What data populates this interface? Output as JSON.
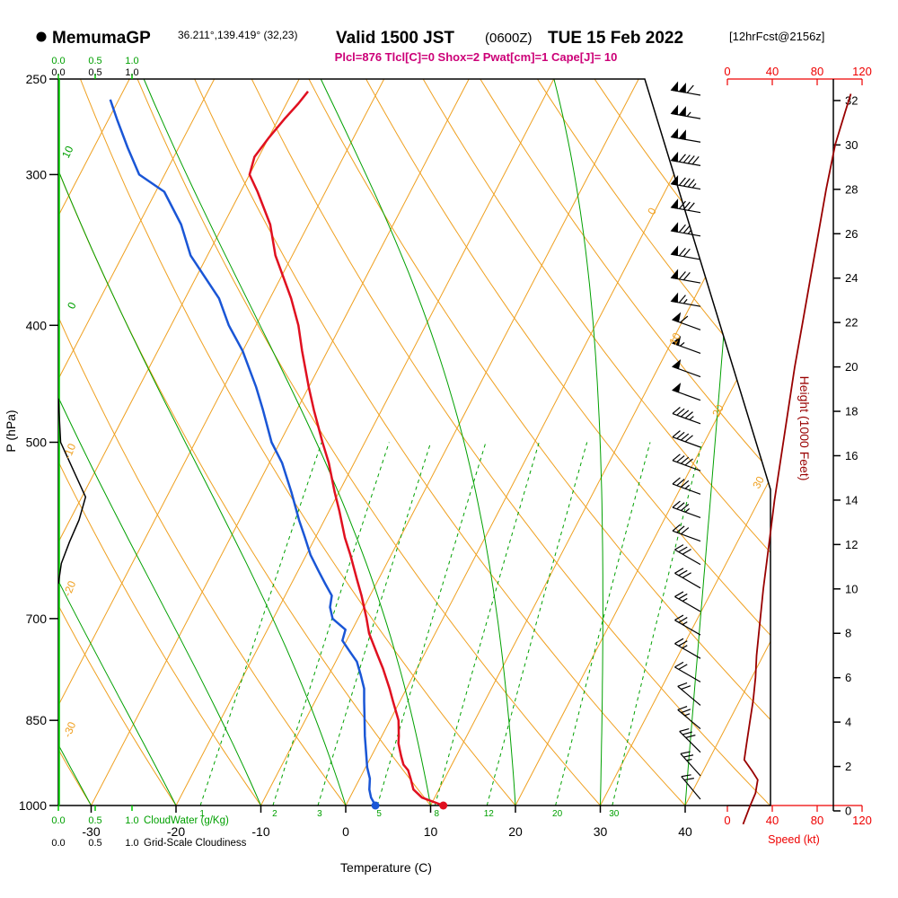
{
  "header": {
    "station": "MemumaGP",
    "coords": "36.211°,139.419° (32,23)",
    "valid": "Valid 1500 JST",
    "valid_z": "(0600Z)",
    "valid_date": "TUE 15 Feb 2022",
    "fcst_tag": "[12hrFcst@2156z]",
    "params_line": "Plcl=876 Tlcl[C]=0 Shox=2 Pwat[cm]=1 Cape[J]= 10"
  },
  "axis_labels": {
    "pressure": "P (hPa)",
    "temperature": "Temperature (C)",
    "height": "Height (1000 Feet)",
    "speed": "Speed (kt)",
    "cloudwater": "CloudWater (g/Kg)",
    "cloudiness": "Grid-Scale Cloudiness"
  },
  "colors": {
    "grid_orange": "#efa020",
    "grid_green": "#00a000",
    "axis_green": "#00cc00",
    "magenta": "#cc0077",
    "speed_red": "#ee0000",
    "height_maroon": "#990000",
    "temperature_red": "#e01020",
    "dewpoint_blue": "#1a56d6"
  },
  "chart_data": {
    "type": "line",
    "title": "MemumaGP Valid 1500 JST (0600Z) TUE 15 Feb 2022 skew-T log-P sounding",
    "xlabel": "Temperature (C)",
    "ylabel": "P (hPa)",
    "pressure_ticks": [
      250,
      300,
      400,
      500,
      700,
      850,
      1000
    ],
    "temp_ticks": [
      -30,
      -20,
      -10,
      0,
      10,
      20,
      30,
      40
    ],
    "height_ticks": [
      0,
      2,
      4,
      6,
      8,
      10,
      12,
      14,
      16,
      18,
      20,
      22,
      24,
      26,
      28,
      30,
      32
    ],
    "speed_ticks": [
      0,
      40,
      80,
      120
    ],
    "cloud_scale_ticks": [
      "0.0",
      "0.5",
      "1.0"
    ],
    "pressure_range": [
      250,
      1000
    ],
    "isotherm_right_labels": [
      "0",
      "10",
      "20",
      "30"
    ],
    "dry_adiabat_left_labels": [
      "-10",
      "-20",
      "-30"
    ],
    "moist_adiabat_left_labels": [
      "10",
      "0"
    ],
    "mixing_ratio_lines": [
      1,
      2,
      3,
      5,
      8,
      12,
      20,
      30
    ],
    "background": {
      "isotherms": {
        "min": -120,
        "max": 40,
        "step": 10
      },
      "dry_adiabats": {
        "min": -40,
        "max": 150,
        "step": 10
      },
      "moist_adiabats": [
        -30,
        -20,
        -10,
        0,
        10,
        20,
        30,
        40
      ],
      "mixing_ratio_top_p": 500
    },
    "series": [
      {
        "name": "temperature",
        "color": "#e01020",
        "units": [
          "hPa",
          "C"
        ],
        "points": [
          [
            1000,
            11.5
          ],
          [
            985,
            8.5
          ],
          [
            970,
            7
          ],
          [
            950,
            6
          ],
          [
            935,
            5.2
          ],
          [
            925,
            4.3
          ],
          [
            910,
            3.5
          ],
          [
            900,
            3
          ],
          [
            888,
            2.4
          ],
          [
            876,
            2
          ],
          [
            850,
            1
          ],
          [
            820,
            -0.8
          ],
          [
            800,
            -2
          ],
          [
            770,
            -4
          ],
          [
            750,
            -5.5
          ],
          [
            720,
            -7.8
          ],
          [
            700,
            -9
          ],
          [
            670,
            -11
          ],
          [
            650,
            -12.5
          ],
          [
            620,
            -14.8
          ],
          [
            600,
            -16.5
          ],
          [
            570,
            -18.8
          ],
          [
            550,
            -20.5
          ],
          [
            520,
            -23
          ],
          [
            500,
            -25
          ],
          [
            470,
            -28
          ],
          [
            450,
            -30
          ],
          [
            420,
            -33
          ],
          [
            400,
            -35
          ],
          [
            380,
            -37.5
          ],
          [
            350,
            -42
          ],
          [
            330,
            -44.5
          ],
          [
            310,
            -48
          ],
          [
            300,
            -50
          ],
          [
            290,
            -50.5
          ],
          [
            280,
            -50
          ],
          [
            270,
            -49.3
          ],
          [
            262,
            -48.6
          ],
          [
            256,
            -48.2
          ]
        ]
      },
      {
        "name": "dewpoint",
        "color": "#1a56d6",
        "units": [
          "hPa",
          "C"
        ],
        "points": [
          [
            1000,
            3.5
          ],
          [
            985,
            2.5
          ],
          [
            970,
            1.8
          ],
          [
            950,
            1.2
          ],
          [
            930,
            0.2
          ],
          [
            900,
            -1
          ],
          [
            876,
            -2
          ],
          [
            850,
            -3
          ],
          [
            820,
            -4.2
          ],
          [
            800,
            -5
          ],
          [
            780,
            -6.2
          ],
          [
            760,
            -7.5
          ],
          [
            745,
            -9
          ],
          [
            730,
            -10.5
          ],
          [
            715,
            -10.8
          ],
          [
            700,
            -13
          ],
          [
            685,
            -14
          ],
          [
            670,
            -14.5
          ],
          [
            655,
            -16
          ],
          [
            640,
            -17.5
          ],
          [
            620,
            -19.5
          ],
          [
            600,
            -21.2
          ],
          [
            580,
            -23
          ],
          [
            550,
            -25.6
          ],
          [
            520,
            -28.5
          ],
          [
            500,
            -31
          ],
          [
            470,
            -34
          ],
          [
            450,
            -36.2
          ],
          [
            420,
            -40
          ],
          [
            400,
            -43.2
          ],
          [
            380,
            -46
          ],
          [
            350,
            -52
          ],
          [
            330,
            -55
          ],
          [
            310,
            -59
          ],
          [
            300,
            -63
          ],
          [
            285,
            -66
          ],
          [
            270,
            -69
          ],
          [
            260,
            -71
          ]
        ]
      },
      {
        "name": "wind_speed_profile",
        "color": "#990000",
        "units": [
          "kft",
          "kt"
        ],
        "points": [
          [
            -0.6,
            14
          ],
          [
            0.2,
            20
          ],
          [
            0.8,
            25
          ],
          [
            1.4,
            27
          ],
          [
            1.8,
            22
          ],
          [
            2.3,
            15
          ],
          [
            3,
            17
          ],
          [
            4,
            20
          ],
          [
            5,
            23
          ],
          [
            6,
            25
          ],
          [
            7,
            26
          ],
          [
            8,
            28
          ],
          [
            10,
            32
          ],
          [
            12,
            37
          ],
          [
            14,
            42
          ],
          [
            16,
            48
          ],
          [
            18,
            54
          ],
          [
            20,
            60
          ],
          [
            22,
            67
          ],
          [
            24,
            74
          ],
          [
            26,
            81
          ],
          [
            28,
            88
          ],
          [
            30,
            96
          ],
          [
            31.5,
            105
          ],
          [
            32.3,
            110
          ]
        ]
      },
      {
        "name": "grid_scale_cloudiness",
        "color": "#000000",
        "units": [
          "hPa",
          "fraction"
        ],
        "points": [
          [
            460,
            0
          ],
          [
            500,
            0.03
          ],
          [
            530,
            0.22
          ],
          [
            555,
            0.37
          ],
          [
            580,
            0.28
          ],
          [
            605,
            0.15
          ],
          [
            630,
            0.04
          ],
          [
            655,
            0
          ]
        ]
      },
      {
        "name": "cloud_water",
        "color": "#00cc00",
        "units": [
          "hPa",
          "g/kg"
        ],
        "points": [
          [
            1000,
            0
          ],
          [
            250,
            0
          ]
        ]
      }
    ],
    "surface_markers": [
      {
        "name": "surface-temperature-dot",
        "color": "#e01020",
        "p": 1000,
        "value": 11.5
      },
      {
        "name": "surface-dewpoint-dot",
        "color": "#1a56d6",
        "p": 1000,
        "value": 3.5
      }
    ],
    "wind_barbs": {
      "order": "top(250hPa) to bottom(1000hPa), evenly spaced",
      "levels": [
        {
          "spd": 108,
          "dir": 280
        },
        {
          "spd": 104,
          "dir": 280
        },
        {
          "spd": 98,
          "dir": 280
        },
        {
          "spd": 92,
          "dir": 280
        },
        {
          "spd": 86,
          "dir": 280
        },
        {
          "spd": 80,
          "dir": 280
        },
        {
          "spd": 76,
          "dir": 280
        },
        {
          "spd": 72,
          "dir": 280
        },
        {
          "spd": 68,
          "dir": 280
        },
        {
          "spd": 64,
          "dir": 280
        },
        {
          "spd": 60,
          "dir": 290
        },
        {
          "spd": 56,
          "dir": 290
        },
        {
          "spd": 52,
          "dir": 290
        },
        {
          "spd": 48,
          "dir": 290
        },
        {
          "spd": 44,
          "dir": 290
        },
        {
          "spd": 40,
          "dir": 290
        },
        {
          "spd": 38,
          "dir": 290
        },
        {
          "spd": 36,
          "dir": 290
        },
        {
          "spd": 34,
          "dir": 290
        },
        {
          "spd": 32,
          "dir": 290
        },
        {
          "spd": 30,
          "dir": 300
        },
        {
          "spd": 28,
          "dir": 300
        },
        {
          "spd": 26,
          "dir": 300
        },
        {
          "spd": 25,
          "dir": 300
        },
        {
          "spd": 24,
          "dir": 300
        },
        {
          "spd": 22,
          "dir": 300
        },
        {
          "spd": 22,
          "dir": 310
        },
        {
          "spd": 25,
          "dir": 310
        },
        {
          "spd": 28,
          "dir": 315
        },
        {
          "spd": 25,
          "dir": 318
        },
        {
          "spd": 20,
          "dir": 320
        }
      ]
    }
  }
}
